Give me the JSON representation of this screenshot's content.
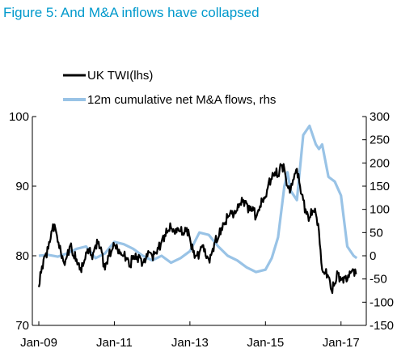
{
  "figure_title": "Figure 5: And M&A inflows have collapsed",
  "chart_data": {
    "type": "line",
    "title": "Figure 5: And M&A inflows have collapsed",
    "x_tick_labels": [
      "Jan-09",
      "Jan-11",
      "Jan-13",
      "Jan-15",
      "Jan-17"
    ],
    "x_range": [
      "2009-01",
      "2017-08"
    ],
    "y_left": {
      "ticks": [
        70,
        80,
        90,
        100
      ],
      "range": [
        70,
        100
      ]
    },
    "y_right": {
      "ticks": [
        -150,
        -100,
        -50,
        0,
        50,
        100,
        150,
        200,
        250,
        300
      ],
      "range": [
        -150,
        300
      ]
    },
    "grid": false,
    "legend_placement": "top-left",
    "series": [
      {
        "name": "UK TWI(lhs)",
        "axis": "left",
        "color": "#000000",
        "x": [
          "2009-01",
          "2009-02",
          "2009-03",
          "2009-04",
          "2009-05",
          "2009-06",
          "2009-07",
          "2009-08",
          "2009-09",
          "2009-10",
          "2009-11",
          "2009-12",
          "2010-01",
          "2010-02",
          "2010-03",
          "2010-04",
          "2010-05",
          "2010-06",
          "2010-07",
          "2010-08",
          "2010-09",
          "2010-10",
          "2010-11",
          "2010-12",
          "2011-01",
          "2011-02",
          "2011-03",
          "2011-04",
          "2011-05",
          "2011-06",
          "2011-07",
          "2011-08",
          "2011-09",
          "2011-10",
          "2011-11",
          "2011-12",
          "2012-01",
          "2012-02",
          "2012-03",
          "2012-04",
          "2012-05",
          "2012-06",
          "2012-07",
          "2012-08",
          "2012-09",
          "2012-10",
          "2012-11",
          "2012-12",
          "2013-01",
          "2013-02",
          "2013-03",
          "2013-04",
          "2013-05",
          "2013-06",
          "2013-07",
          "2013-08",
          "2013-09",
          "2013-10",
          "2013-11",
          "2013-12",
          "2014-01",
          "2014-02",
          "2014-03",
          "2014-04",
          "2014-05",
          "2014-06",
          "2014-07",
          "2014-08",
          "2014-09",
          "2014-10",
          "2014-11",
          "2014-12",
          "2015-01",
          "2015-02",
          "2015-03",
          "2015-04",
          "2015-05",
          "2015-06",
          "2015-07",
          "2015-08",
          "2015-09",
          "2015-10",
          "2015-11",
          "2015-12",
          "2016-01",
          "2016-02",
          "2016-03",
          "2016-04",
          "2016-05",
          "2016-06",
          "2016-07",
          "2016-08",
          "2016-09",
          "2016-10",
          "2016-11",
          "2016-12",
          "2017-01",
          "2017-02",
          "2017-03",
          "2017-04",
          "2017-05",
          "2017-06"
        ],
        "values": [
          75.5,
          78.5,
          80.0,
          81.0,
          83.5,
          84.5,
          82.0,
          80.5,
          79.0,
          80.0,
          81.5,
          80.0,
          79.5,
          78.0,
          78.5,
          80.5,
          81.0,
          79.5,
          81.5,
          82.0,
          80.5,
          78.0,
          80.0,
          80.5,
          81.5,
          81.0,
          80.5,
          80.0,
          79.5,
          78.5,
          80.0,
          79.5,
          80.0,
          79.0,
          79.5,
          80.5,
          80.0,
          80.5,
          81.0,
          82.0,
          83.0,
          83.5,
          84.0,
          83.5,
          84.0,
          83.5,
          83.0,
          84.0,
          82.5,
          80.5,
          80.0,
          80.5,
          81.5,
          80.0,
          79.5,
          80.5,
          82.0,
          82.5,
          84.0,
          84.5,
          85.5,
          86.5,
          86.0,
          86.5,
          87.5,
          88.0,
          87.5,
          86.5,
          87.0,
          85.5,
          86.5,
          88.0,
          88.5,
          90.5,
          91.0,
          92.0,
          91.5,
          93.0,
          92.5,
          90.0,
          89.5,
          91.0,
          92.5,
          90.0,
          88.0,
          86.0,
          85.5,
          86.5,
          86.0,
          83.5,
          78.0,
          77.5,
          77.0,
          75.0,
          76.0,
          77.5,
          76.5,
          77.0,
          76.5,
          77.5,
          78.0,
          77.5
        ]
      },
      {
        "name": "12m cumulative net M&A flows, rhs",
        "axis": "right",
        "color": "#99c3e6",
        "x": [
          "2009-01",
          "2009-04",
          "2009-07",
          "2009-10",
          "2010-01",
          "2010-04",
          "2010-07",
          "2010-10",
          "2011-01",
          "2011-04",
          "2011-07",
          "2011-10",
          "2012-01",
          "2012-04",
          "2012-07",
          "2012-10",
          "2013-01",
          "2013-04",
          "2013-07",
          "2013-10",
          "2014-01",
          "2014-04",
          "2014-07",
          "2014-10",
          "2015-01",
          "2015-03",
          "2015-05",
          "2015-07",
          "2015-08",
          "2015-09",
          "2015-11",
          "2016-01",
          "2016-03",
          "2016-05",
          "2016-06",
          "2016-07",
          "2016-09",
          "2016-11",
          "2017-01",
          "2017-03",
          "2017-05",
          "2017-06"
        ],
        "values": [
          0,
          2,
          -2,
          5,
          15,
          20,
          -5,
          5,
          30,
          25,
          15,
          0,
          -10,
          0,
          -15,
          -5,
          10,
          50,
          45,
          20,
          0,
          -10,
          -25,
          -35,
          -30,
          -5,
          40,
          150,
          180,
          140,
          120,
          260,
          280,
          240,
          230,
          240,
          170,
          160,
          130,
          20,
          0,
          -5
        ]
      }
    ]
  }
}
